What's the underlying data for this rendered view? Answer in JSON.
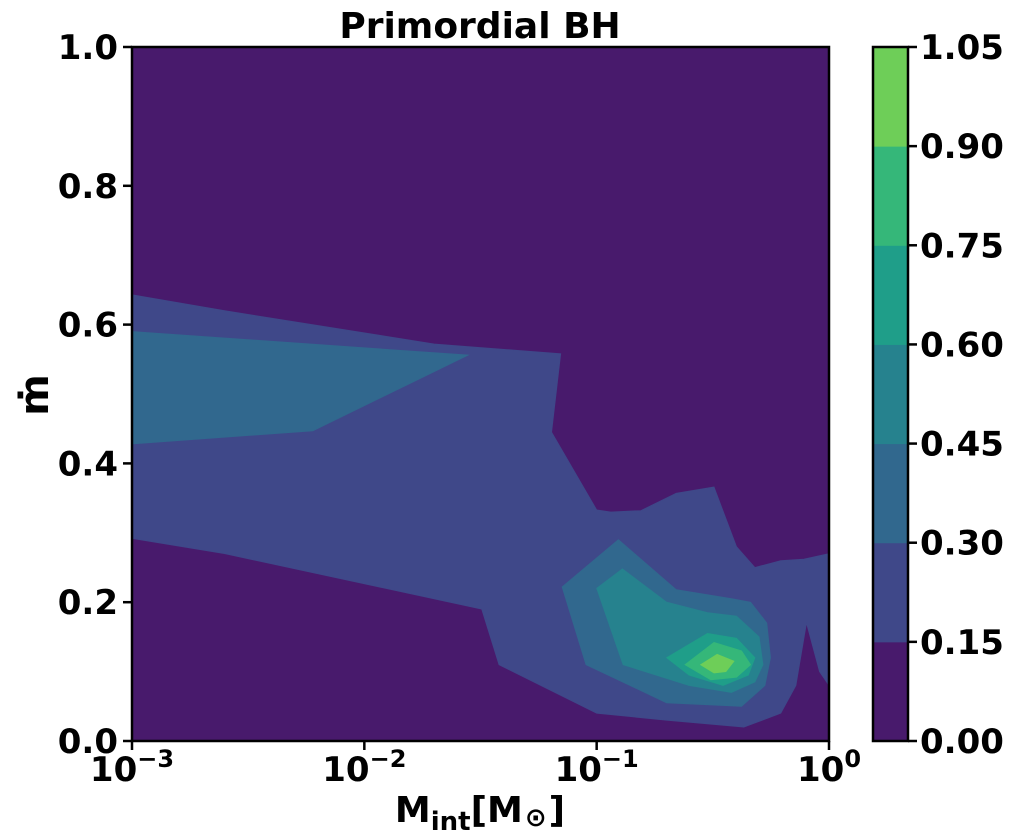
{
  "chart_data": {
    "type": "heatmap",
    "subtype": "filled-contour",
    "title": "Primordial BH",
    "xlabel": {
      "main": "M",
      "sub": "int",
      "unit_open": "[M",
      "unit_symbol": "⊙",
      "unit_close": "]"
    },
    "ylabel": "ṁ",
    "x_scale": "log",
    "xlim": [
      0.001,
      1
    ],
    "ylim": [
      0,
      1
    ],
    "x_ticks": [
      {
        "value": 0.001,
        "base": "10",
        "exp": "−3"
      },
      {
        "value": 0.01,
        "base": "10",
        "exp": "−2"
      },
      {
        "value": 0.1,
        "base": "10",
        "exp": "−1"
      },
      {
        "value": 1,
        "base": "10",
        "exp": "0"
      }
    ],
    "y_ticks": [
      {
        "value": 0.0,
        "label": "0.0"
      },
      {
        "value": 0.2,
        "label": "0.2"
      },
      {
        "value": 0.4,
        "label": "0.4"
      },
      {
        "value": 0.6,
        "label": "0.6"
      },
      {
        "value": 0.8,
        "label": "0.8"
      },
      {
        "value": 1.0,
        "label": "1.0"
      }
    ],
    "colormap": "viridis",
    "levels": [
      0.0,
      0.15,
      0.3,
      0.45,
      0.6,
      0.75,
      0.9,
      1.05
    ],
    "level_colors": [
      "#481a6c",
      "#3f4889",
      "#31688e",
      "#26828e",
      "#1f9e89",
      "#35b779",
      "#6ece58",
      "#c8e020"
    ],
    "colorbar": {
      "tick_labels": [
        "0.00",
        "0.15",
        "0.30",
        "0.45",
        "0.60",
        "0.75",
        "0.90",
        "1.05"
      ]
    },
    "contours": [
      {
        "level": 0.15,
        "points": [
          [
            0.001,
            0.643
          ],
          [
            0.0025,
            0.62
          ],
          [
            0.02,
            0.572
          ],
          [
            0.07,
            0.558
          ],
          [
            0.064,
            0.445
          ],
          [
            0.1,
            0.333
          ],
          [
            0.115,
            0.33
          ],
          [
            0.155,
            0.332
          ],
          [
            0.22,
            0.357
          ],
          [
            0.32,
            0.366
          ],
          [
            0.4,
            0.28
          ],
          [
            0.48,
            0.25
          ],
          [
            0.62,
            0.26
          ],
          [
            0.78,
            0.262
          ],
          [
            1.0,
            0.27
          ],
          [
            1.0,
            0.08
          ],
          [
            0.91,
            0.1
          ],
          [
            0.8,
            0.17
          ],
          [
            0.72,
            0.08
          ],
          [
            0.62,
            0.04
          ],
          [
            0.43,
            0.02
          ],
          [
            0.2,
            0.03
          ],
          [
            0.1,
            0.04
          ],
          [
            0.038,
            0.11
          ],
          [
            0.032,
            0.19
          ],
          [
            0.0025,
            0.27
          ],
          [
            0.001,
            0.292
          ]
        ]
      },
      {
        "level": 0.3,
        "points": [
          [
            0.001,
            0.59
          ],
          [
            0.028,
            0.556
          ],
          [
            0.006,
            0.447
          ],
          [
            0.001,
            0.428
          ]
        ]
      },
      {
        "level": 0.3,
        "points": [
          [
            0.071,
            0.222
          ],
          [
            0.124,
            0.29
          ],
          [
            0.22,
            0.218
          ],
          [
            0.38,
            0.205
          ],
          [
            0.46,
            0.2
          ],
          [
            0.54,
            0.17
          ],
          [
            0.56,
            0.12
          ],
          [
            0.53,
            0.08
          ],
          [
            0.42,
            0.05
          ],
          [
            0.2,
            0.055
          ],
          [
            0.09,
            0.11
          ]
        ]
      },
      {
        "level": 0.45,
        "points": [
          [
            0.1,
            0.22
          ],
          [
            0.129,
            0.248
          ],
          [
            0.2,
            0.2
          ],
          [
            0.3,
            0.185
          ],
          [
            0.4,
            0.18
          ],
          [
            0.5,
            0.15
          ],
          [
            0.52,
            0.11
          ],
          [
            0.48,
            0.085
          ],
          [
            0.38,
            0.07
          ],
          [
            0.25,
            0.08
          ],
          [
            0.13,
            0.11
          ]
        ]
      },
      {
        "level": 0.6,
        "points": [
          [
            0.2,
            0.12
          ],
          [
            0.3,
            0.155
          ],
          [
            0.4,
            0.148
          ],
          [
            0.48,
            0.12
          ],
          [
            0.45,
            0.095
          ],
          [
            0.35,
            0.08
          ],
          [
            0.25,
            0.095
          ]
        ]
      },
      {
        "level": 0.75,
        "points": [
          [
            0.24,
            0.11
          ],
          [
            0.32,
            0.142
          ],
          [
            0.42,
            0.13
          ],
          [
            0.46,
            0.11
          ],
          [
            0.4,
            0.092
          ],
          [
            0.31,
            0.088
          ]
        ]
      },
      {
        "level": 0.9,
        "points": [
          [
            0.28,
            0.11
          ],
          [
            0.33,
            0.125
          ],
          [
            0.39,
            0.115
          ],
          [
            0.36,
            0.1
          ],
          [
            0.32,
            0.098
          ]
        ]
      }
    ]
  }
}
